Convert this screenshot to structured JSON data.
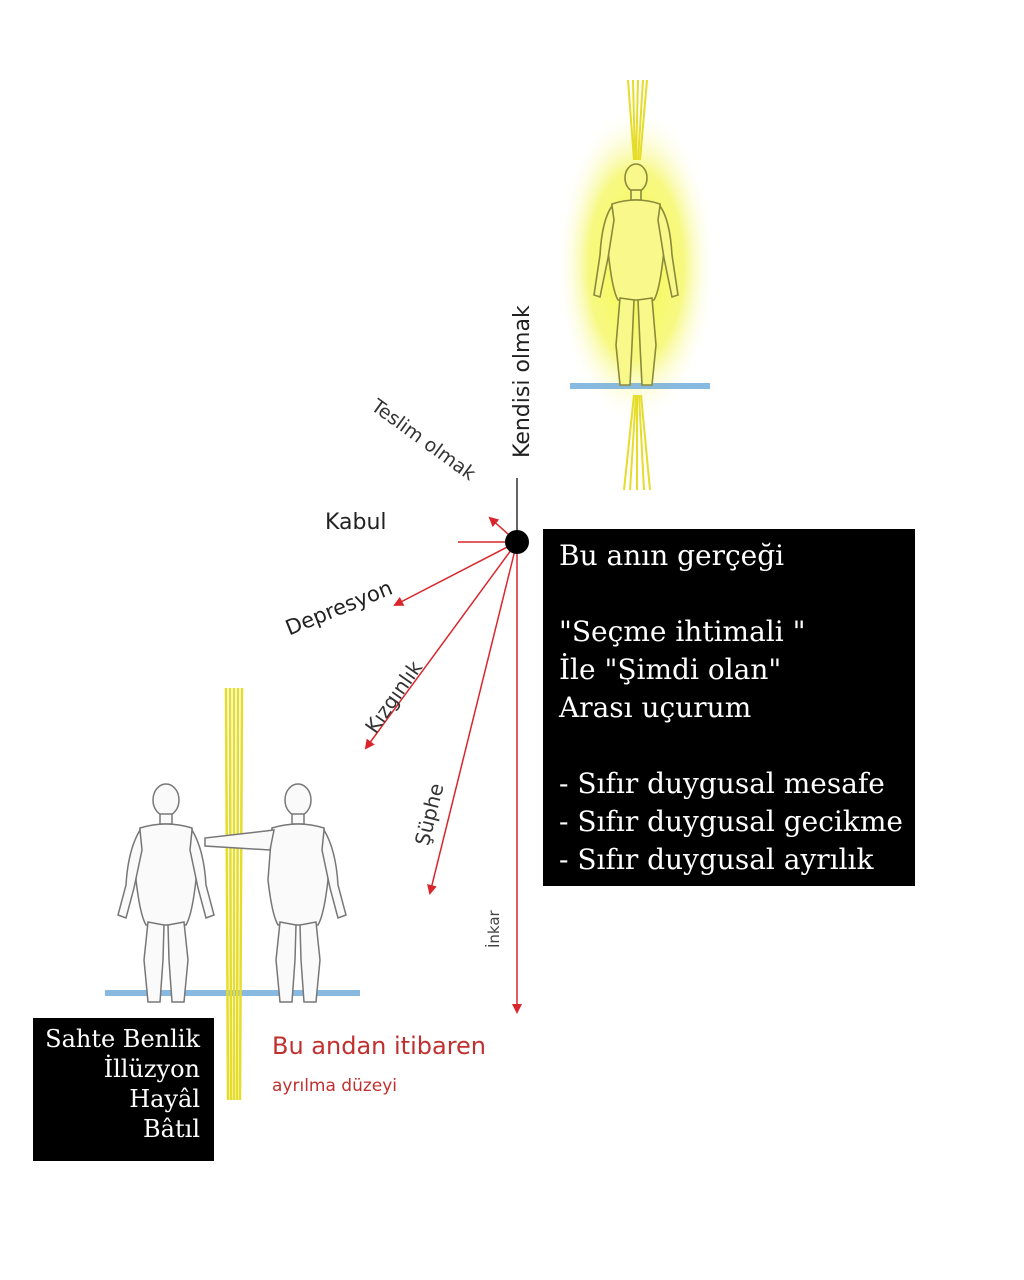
{
  "diagram": {
    "labels": {
      "kendisi_olmak": "Kendisi olmak",
      "teslim_olmak": "Teslim olmak",
      "kabul": "Kabul",
      "depresyon": "Depresyon",
      "kizginlik": "Kızgınlık",
      "suphe": "Şüphe",
      "inkar": "İnkar"
    },
    "bottom_caption": {
      "title": "Bu andan itibaren",
      "subtitle": "ayrılma düzeyi"
    }
  },
  "truth_box": {
    "lines": [
      "Bu anın gerçeği",
      "",
      "\"Seçme ihtimali \"",
      "İle \"Şimdi olan\"",
      "Arası uçurum",
      "",
      "- Sıfır duygusal mesafe",
      "- Sıfır duygusal gecikme",
      "- Sıfır duygusal ayrılık"
    ]
  },
  "false_box": {
    "lines": [
      "Sahte Benlik",
      "İllüzyon",
      "Hayâl",
      "Bâtıl"
    ]
  },
  "colors": {
    "arrow": "#d9262c",
    "glow": "#f2f53a",
    "ground": "#6aa8d8",
    "caption_red": "#c0302f"
  }
}
